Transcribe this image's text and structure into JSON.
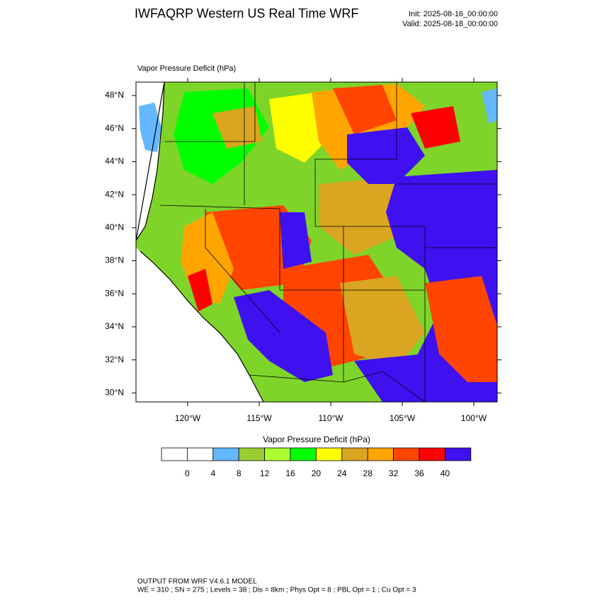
{
  "header": {
    "title": "IWFAQRP Western US Real Time WRF",
    "init": "Init: 2025-08-16_00:00:00",
    "valid": "Valid: 2025-08-18_00:00:00"
  },
  "map": {
    "field_label": "Vapor Pressure Deficit   (hPa)",
    "lat_ticks": [
      {
        "value": 48,
        "label": "48°N"
      },
      {
        "value": 46,
        "label": "46°N"
      },
      {
        "value": 44,
        "label": "44°N"
      },
      {
        "value": 42,
        "label": "42°N"
      },
      {
        "value": 40,
        "label": "40°N"
      },
      {
        "value": 38,
        "label": "38°N"
      },
      {
        "value": 36,
        "label": "36°N"
      },
      {
        "value": 34,
        "label": "34°N"
      },
      {
        "value": 32,
        "label": "32°N"
      },
      {
        "value": 30,
        "label": "30°N"
      }
    ],
    "lon_ticks": [
      {
        "value": -120,
        "label": "120°W"
      },
      {
        "value": -115,
        "label": "115°W"
      },
      {
        "value": -110,
        "label": "110°W"
      },
      {
        "value": -105,
        "label": "105°W"
      },
      {
        "value": -100,
        "label": "100°W"
      }
    ]
  },
  "colorbar": {
    "title": "Vapor Pressure Deficit  (hPa)",
    "colors": [
      "#ffffff",
      "#ffffff",
      "#63b8ff",
      "#9acd32",
      "#adff2f",
      "#00ff00",
      "#ffff00",
      "#daa520",
      "#ffa500",
      "#ff4500",
      "#ff0000",
      "#3f10f0"
    ],
    "levels": [
      0,
      4,
      8,
      12,
      16,
      20,
      24,
      28,
      32,
      36,
      40
    ]
  },
  "footer": {
    "line1": "OUTPUT FROM WRF V4.6.1 MODEL",
    "line2": "WE = 310 ; SN = 275 ; Levels = 38 ; Dis = 8km ; Phys Opt = 8 ; PBL Opt = 1 ; Cu Opt = 3"
  }
}
